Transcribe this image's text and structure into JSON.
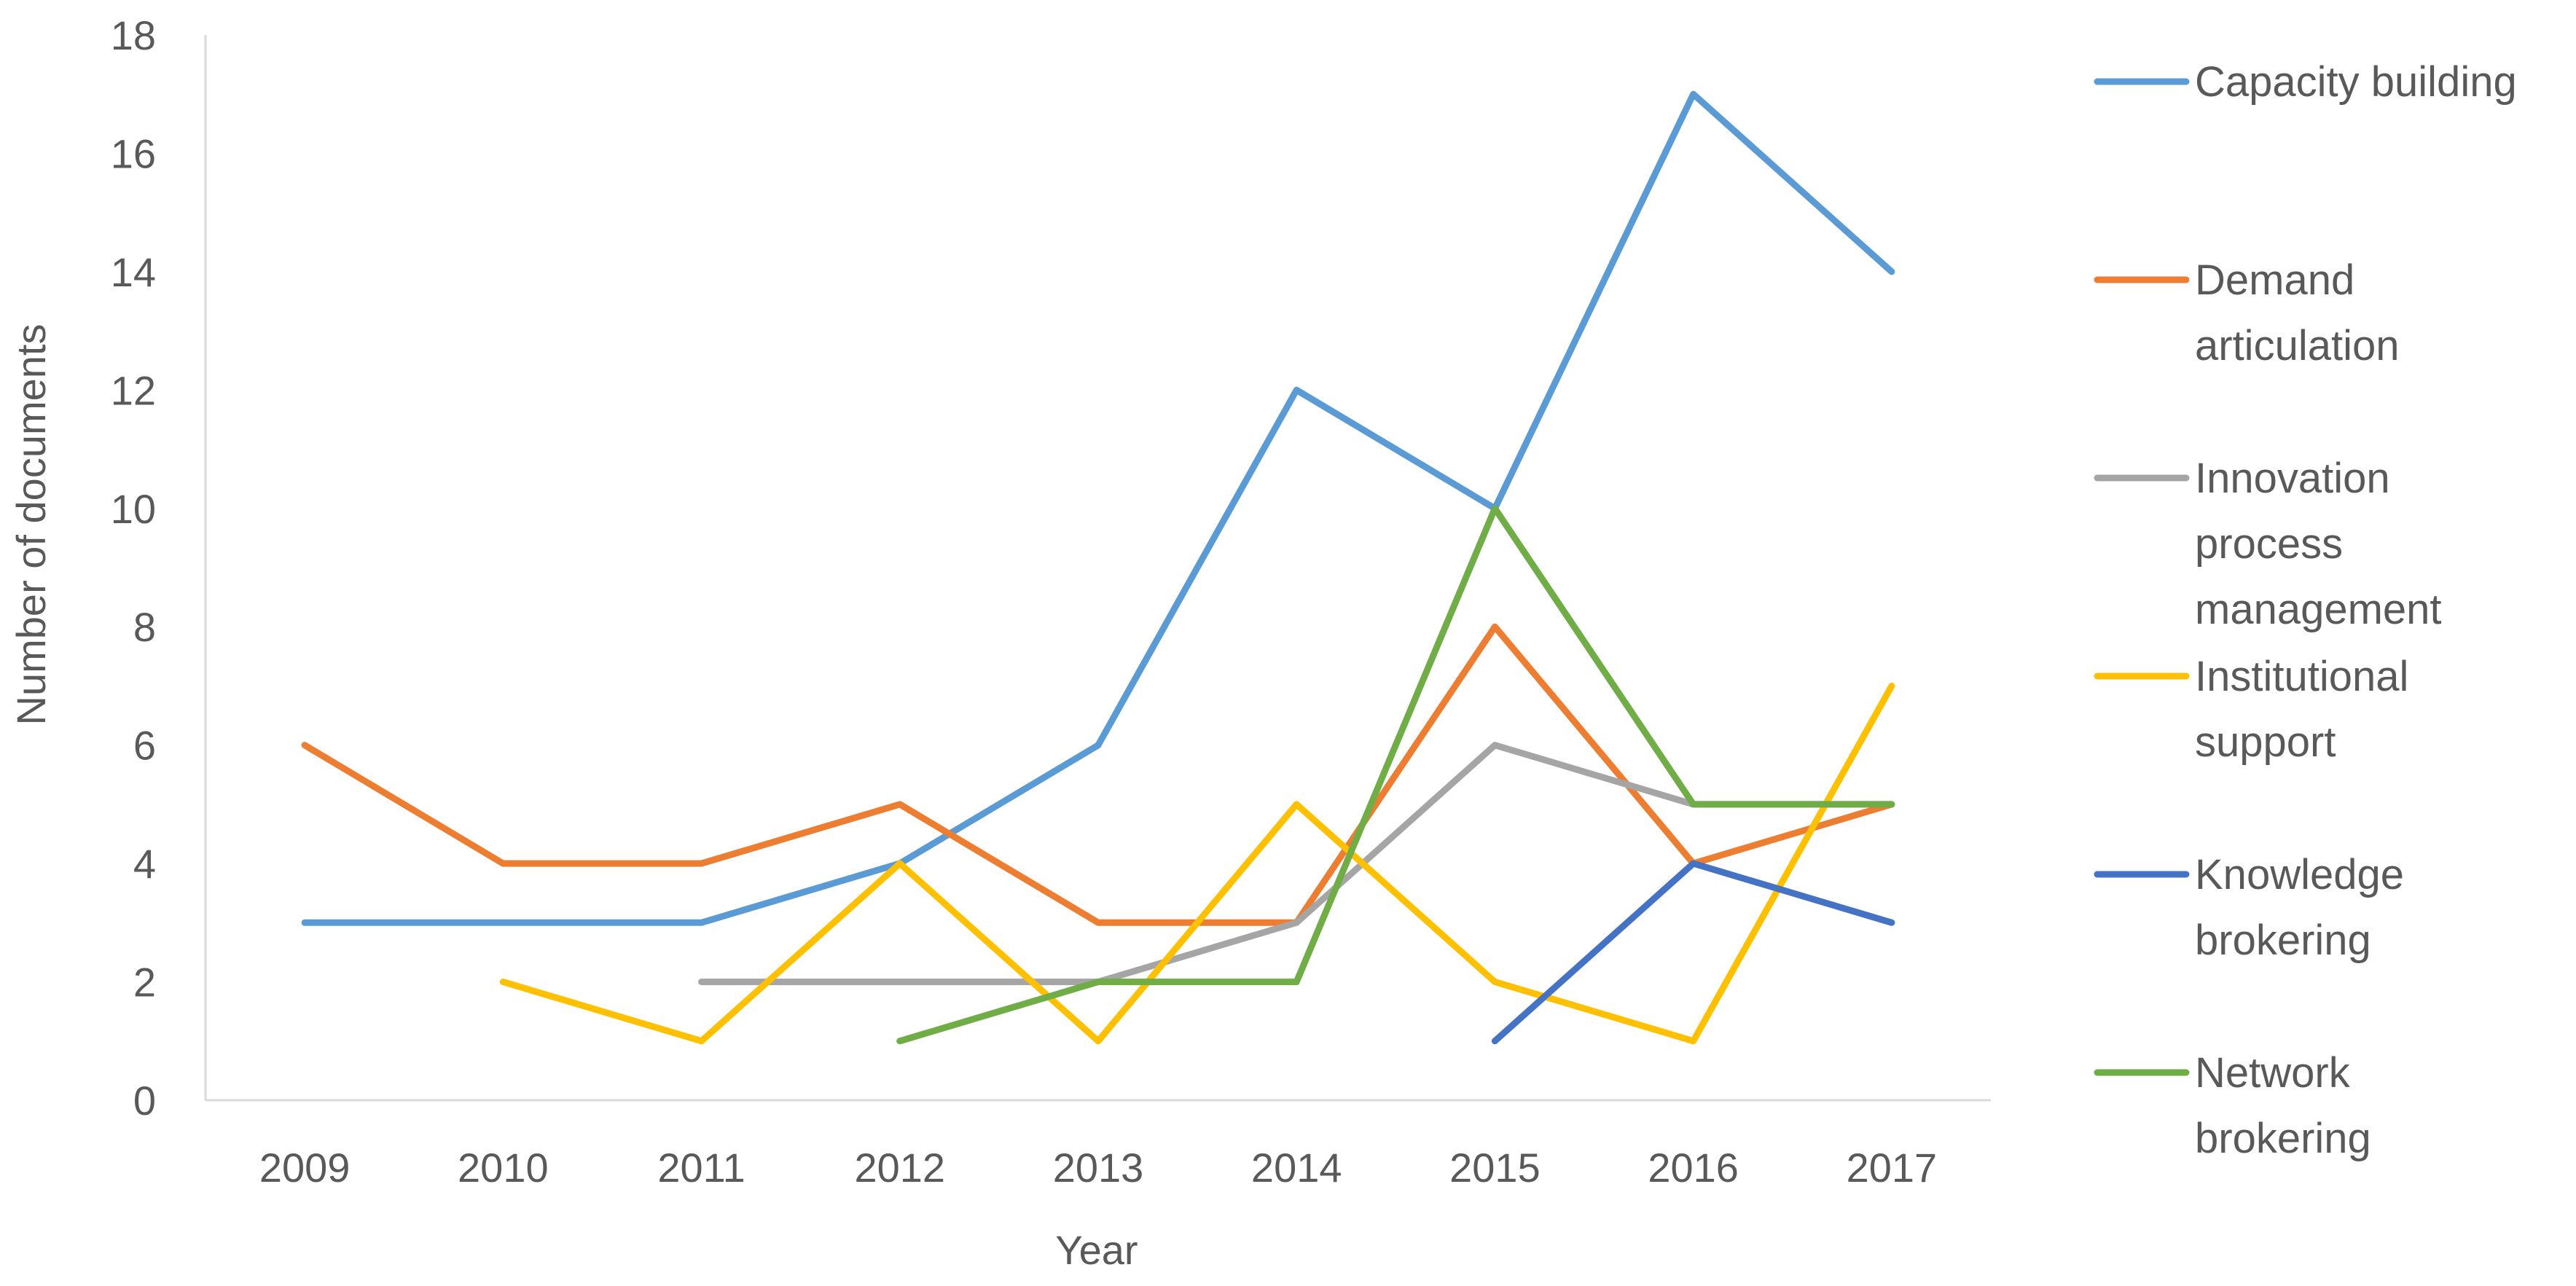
{
  "chart_data": {
    "type": "line",
    "title": "",
    "xlabel": "Year",
    "ylabel": "Number of documents",
    "categories": [
      "2009",
      "2010",
      "2011",
      "2012",
      "2013",
      "2014",
      "2015",
      "2016",
      "2017"
    ],
    "ylim": [
      0,
      18
    ],
    "yticks": [
      0,
      2,
      4,
      6,
      8,
      10,
      12,
      14,
      16,
      18
    ],
    "grid": false,
    "legend_position": "right",
    "series": [
      {
        "name": "Capacity building",
        "legend_lines": [
          "Capacity building"
        ],
        "color": "#5B9BD5",
        "values": [
          3,
          3,
          3,
          4,
          6,
          12,
          10,
          17,
          14
        ]
      },
      {
        "name": "Demand articulation",
        "legend_lines": [
          "Demand",
          "articulation"
        ],
        "color": "#ED7D31",
        "values": [
          6,
          4,
          4,
          5,
          3,
          3,
          8,
          4,
          5
        ]
      },
      {
        "name": "Innovation process management",
        "legend_lines": [
          "Innovation",
          "process",
          "management"
        ],
        "color": "#A5A5A5",
        "values": [
          null,
          null,
          2,
          2,
          2,
          3,
          6,
          5,
          5
        ]
      },
      {
        "name": "Institutional support",
        "legend_lines": [
          "Institutional",
          "support"
        ],
        "color": "#FFC000",
        "values": [
          null,
          2,
          1,
          4,
          1,
          5,
          2,
          1,
          7
        ]
      },
      {
        "name": "Knowledge brokering",
        "legend_lines": [
          "Knowledge",
          "brokering"
        ],
        "color": "#4472C4",
        "values": [
          null,
          null,
          null,
          null,
          null,
          null,
          1,
          4,
          3
        ]
      },
      {
        "name": "Network brokering",
        "legend_lines": [
          "Network",
          "brokering"
        ],
        "color": "#70AD47",
        "values": [
          null,
          null,
          null,
          1,
          2,
          2,
          10,
          5,
          5
        ]
      }
    ]
  }
}
